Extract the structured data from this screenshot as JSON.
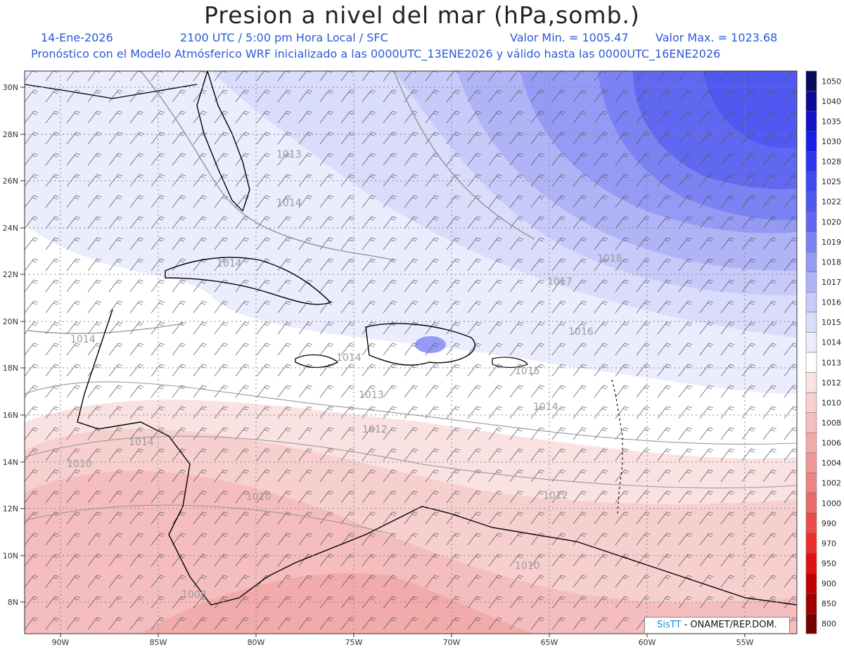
{
  "header": {
    "title": "Presion a nivel del mar (hPa,somb.)",
    "date": "14-Ene-2026",
    "time_info": "2100 UTC / 5:00 pm Hora Local / SFC",
    "min_label": "Valor Min. = 1005.47",
    "max_label": "Valor Max. = 1023.68",
    "model_info": "Pronóstico con el Modelo Atmósferico WRF inicializado a las 0000UTC_13ENE2026 y válido hasta las  0000UTC_16ENE2026"
  },
  "map": {
    "lat_labels": [
      "30N",
      "28N",
      "26N",
      "24N",
      "22N",
      "20N",
      "18N",
      "16N",
      "14N",
      "12N",
      "10N",
      "8N"
    ],
    "lon_labels": [
      "90W",
      "85W",
      "80W",
      "75W",
      "70W",
      "65W",
      "60W",
      "55W"
    ],
    "isobar_labels": [
      "1013",
      "1014",
      "1014",
      "1014",
      "1014",
      "1013",
      "1012",
      "1014",
      "1010",
      "1010",
      "1018",
      "1017",
      "1016",
      "1015",
      "1014",
      "1012",
      "1010",
      "1008"
    ]
  },
  "legend": {
    "levels": [
      "1050",
      "1040",
      "1035",
      "1030",
      "1028",
      "1025",
      "1022",
      "1020",
      "1019",
      "1018",
      "1017",
      "1016",
      "1015",
      "1014",
      "1013",
      "1012",
      "1010",
      "1008",
      "1006",
      "1004",
      "1002",
      "1000",
      "990",
      "970",
      "950",
      "900",
      "850",
      "800"
    ],
    "colors": [
      "#0a0a5a",
      "#0a0a96",
      "#1010c8",
      "#1c1cea",
      "#2e35f0",
      "#4048f2",
      "#5058f2",
      "#6068f2",
      "#7a82f4",
      "#959bf5",
      "#b0b4f7",
      "#c8caf9",
      "#dadcfb",
      "#ebecfd",
      "#ffffff",
      "#fbe2e2",
      "#f8cfcf",
      "#f5bdbd",
      "#f2aaaa",
      "#ef9898",
      "#ec8484",
      "#ea6a6a",
      "#ea4c4c",
      "#ea2e2e",
      "#e01010",
      "#c00000",
      "#a00000",
      "#780000"
    ]
  },
  "credit": {
    "brand": "SisTT",
    "org": " - ONAMET/REP.DOM."
  }
}
